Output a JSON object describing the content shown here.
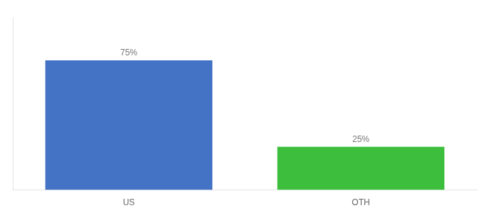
{
  "chart_data": {
    "type": "bar",
    "categories": [
      "US",
      "OTH"
    ],
    "values": [
      75,
      25
    ],
    "colors": [
      "#4472c4",
      "#3dbf3d"
    ],
    "value_labels": [
      "75%",
      "25%"
    ],
    "data_labels": true,
    "ylim": [
      0,
      100
    ],
    "grid": false,
    "tick_labels": "x"
  }
}
